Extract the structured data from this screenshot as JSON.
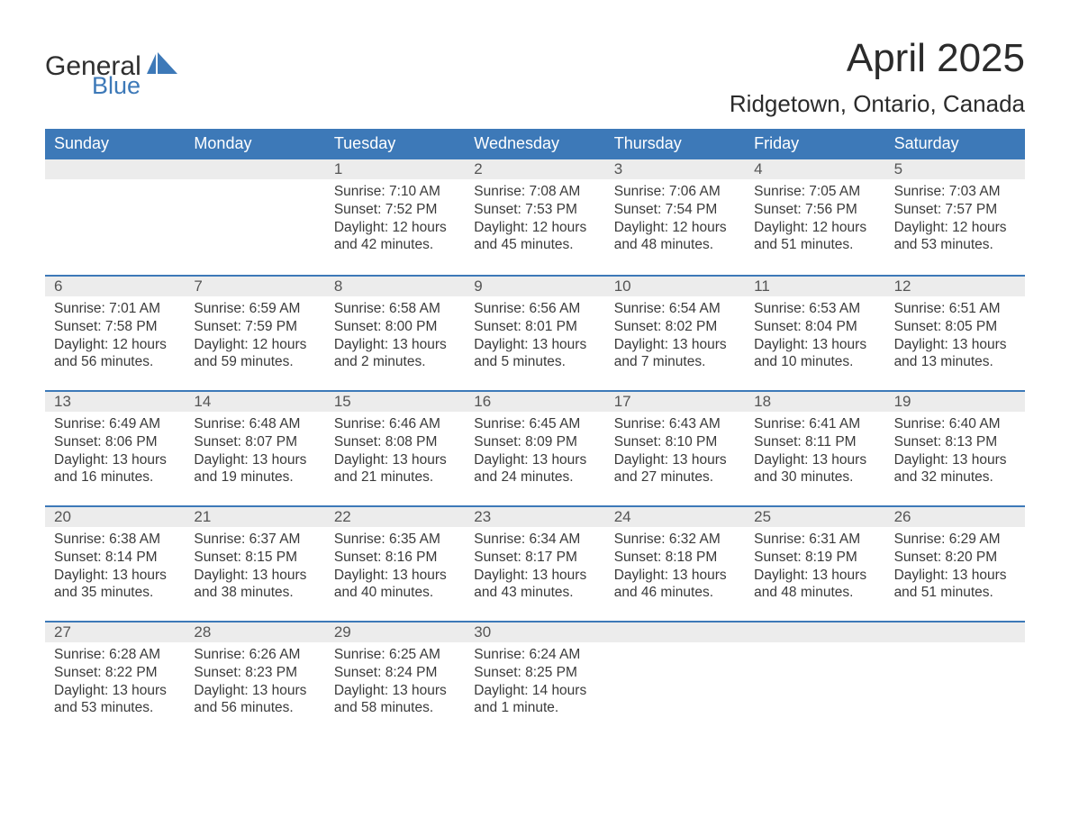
{
  "brand": {
    "word1": "General",
    "word2": "Blue",
    "color_text": "#2f2f2f",
    "color_blue": "#3d79b8"
  },
  "header": {
    "month_title": "April 2025",
    "location": "Ridgetown, Ontario, Canada"
  },
  "style": {
    "header_bg": "#3d79b8",
    "header_text": "#ffffff",
    "daynum_bg": "#ececec",
    "daynum_text": "#555555",
    "body_text": "#3a3a3a",
    "row_border": "#3d79b8",
    "page_bg": "#ffffff",
    "cell_fontsize": 15.5,
    "weekday_fontsize": 18,
    "title_fontsize": 44,
    "location_fontsize": 26
  },
  "weekdays": [
    "Sunday",
    "Monday",
    "Tuesday",
    "Wednesday",
    "Thursday",
    "Friday",
    "Saturday"
  ],
  "weeks": [
    [
      {
        "day": "",
        "sunrise": "",
        "sunset": "",
        "daylight": ""
      },
      {
        "day": "",
        "sunrise": "",
        "sunset": "",
        "daylight": ""
      },
      {
        "day": "1",
        "sunrise": "Sunrise: 7:10 AM",
        "sunset": "Sunset: 7:52 PM",
        "daylight": "Daylight: 12 hours and 42 minutes."
      },
      {
        "day": "2",
        "sunrise": "Sunrise: 7:08 AM",
        "sunset": "Sunset: 7:53 PM",
        "daylight": "Daylight: 12 hours and 45 minutes."
      },
      {
        "day": "3",
        "sunrise": "Sunrise: 7:06 AM",
        "sunset": "Sunset: 7:54 PM",
        "daylight": "Daylight: 12 hours and 48 minutes."
      },
      {
        "day": "4",
        "sunrise": "Sunrise: 7:05 AM",
        "sunset": "Sunset: 7:56 PM",
        "daylight": "Daylight: 12 hours and 51 minutes."
      },
      {
        "day": "5",
        "sunrise": "Sunrise: 7:03 AM",
        "sunset": "Sunset: 7:57 PM",
        "daylight": "Daylight: 12 hours and 53 minutes."
      }
    ],
    [
      {
        "day": "6",
        "sunrise": "Sunrise: 7:01 AM",
        "sunset": "Sunset: 7:58 PM",
        "daylight": "Daylight: 12 hours and 56 minutes."
      },
      {
        "day": "7",
        "sunrise": "Sunrise: 6:59 AM",
        "sunset": "Sunset: 7:59 PM",
        "daylight": "Daylight: 12 hours and 59 minutes."
      },
      {
        "day": "8",
        "sunrise": "Sunrise: 6:58 AM",
        "sunset": "Sunset: 8:00 PM",
        "daylight": "Daylight: 13 hours and 2 minutes."
      },
      {
        "day": "9",
        "sunrise": "Sunrise: 6:56 AM",
        "sunset": "Sunset: 8:01 PM",
        "daylight": "Daylight: 13 hours and 5 minutes."
      },
      {
        "day": "10",
        "sunrise": "Sunrise: 6:54 AM",
        "sunset": "Sunset: 8:02 PM",
        "daylight": "Daylight: 13 hours and 7 minutes."
      },
      {
        "day": "11",
        "sunrise": "Sunrise: 6:53 AM",
        "sunset": "Sunset: 8:04 PM",
        "daylight": "Daylight: 13 hours and 10 minutes."
      },
      {
        "day": "12",
        "sunrise": "Sunrise: 6:51 AM",
        "sunset": "Sunset: 8:05 PM",
        "daylight": "Daylight: 13 hours and 13 minutes."
      }
    ],
    [
      {
        "day": "13",
        "sunrise": "Sunrise: 6:49 AM",
        "sunset": "Sunset: 8:06 PM",
        "daylight": "Daylight: 13 hours and 16 minutes."
      },
      {
        "day": "14",
        "sunrise": "Sunrise: 6:48 AM",
        "sunset": "Sunset: 8:07 PM",
        "daylight": "Daylight: 13 hours and 19 minutes."
      },
      {
        "day": "15",
        "sunrise": "Sunrise: 6:46 AM",
        "sunset": "Sunset: 8:08 PM",
        "daylight": "Daylight: 13 hours and 21 minutes."
      },
      {
        "day": "16",
        "sunrise": "Sunrise: 6:45 AM",
        "sunset": "Sunset: 8:09 PM",
        "daylight": "Daylight: 13 hours and 24 minutes."
      },
      {
        "day": "17",
        "sunrise": "Sunrise: 6:43 AM",
        "sunset": "Sunset: 8:10 PM",
        "daylight": "Daylight: 13 hours and 27 minutes."
      },
      {
        "day": "18",
        "sunrise": "Sunrise: 6:41 AM",
        "sunset": "Sunset: 8:11 PM",
        "daylight": "Daylight: 13 hours and 30 minutes."
      },
      {
        "day": "19",
        "sunrise": "Sunrise: 6:40 AM",
        "sunset": "Sunset: 8:13 PM",
        "daylight": "Daylight: 13 hours and 32 minutes."
      }
    ],
    [
      {
        "day": "20",
        "sunrise": "Sunrise: 6:38 AM",
        "sunset": "Sunset: 8:14 PM",
        "daylight": "Daylight: 13 hours and 35 minutes."
      },
      {
        "day": "21",
        "sunrise": "Sunrise: 6:37 AM",
        "sunset": "Sunset: 8:15 PM",
        "daylight": "Daylight: 13 hours and 38 minutes."
      },
      {
        "day": "22",
        "sunrise": "Sunrise: 6:35 AM",
        "sunset": "Sunset: 8:16 PM",
        "daylight": "Daylight: 13 hours and 40 minutes."
      },
      {
        "day": "23",
        "sunrise": "Sunrise: 6:34 AM",
        "sunset": "Sunset: 8:17 PM",
        "daylight": "Daylight: 13 hours and 43 minutes."
      },
      {
        "day": "24",
        "sunrise": "Sunrise: 6:32 AM",
        "sunset": "Sunset: 8:18 PM",
        "daylight": "Daylight: 13 hours and 46 minutes."
      },
      {
        "day": "25",
        "sunrise": "Sunrise: 6:31 AM",
        "sunset": "Sunset: 8:19 PM",
        "daylight": "Daylight: 13 hours and 48 minutes."
      },
      {
        "day": "26",
        "sunrise": "Sunrise: 6:29 AM",
        "sunset": "Sunset: 8:20 PM",
        "daylight": "Daylight: 13 hours and 51 minutes."
      }
    ],
    [
      {
        "day": "27",
        "sunrise": "Sunrise: 6:28 AM",
        "sunset": "Sunset: 8:22 PM",
        "daylight": "Daylight: 13 hours and 53 minutes."
      },
      {
        "day": "28",
        "sunrise": "Sunrise: 6:26 AM",
        "sunset": "Sunset: 8:23 PM",
        "daylight": "Daylight: 13 hours and 56 minutes."
      },
      {
        "day": "29",
        "sunrise": "Sunrise: 6:25 AM",
        "sunset": "Sunset: 8:24 PM",
        "daylight": "Daylight: 13 hours and 58 minutes."
      },
      {
        "day": "30",
        "sunrise": "Sunrise: 6:24 AM",
        "sunset": "Sunset: 8:25 PM",
        "daylight": "Daylight: 14 hours and 1 minute."
      },
      {
        "day": "",
        "sunrise": "",
        "sunset": "",
        "daylight": ""
      },
      {
        "day": "",
        "sunrise": "",
        "sunset": "",
        "daylight": ""
      },
      {
        "day": "",
        "sunrise": "",
        "sunset": "",
        "daylight": ""
      }
    ]
  ]
}
